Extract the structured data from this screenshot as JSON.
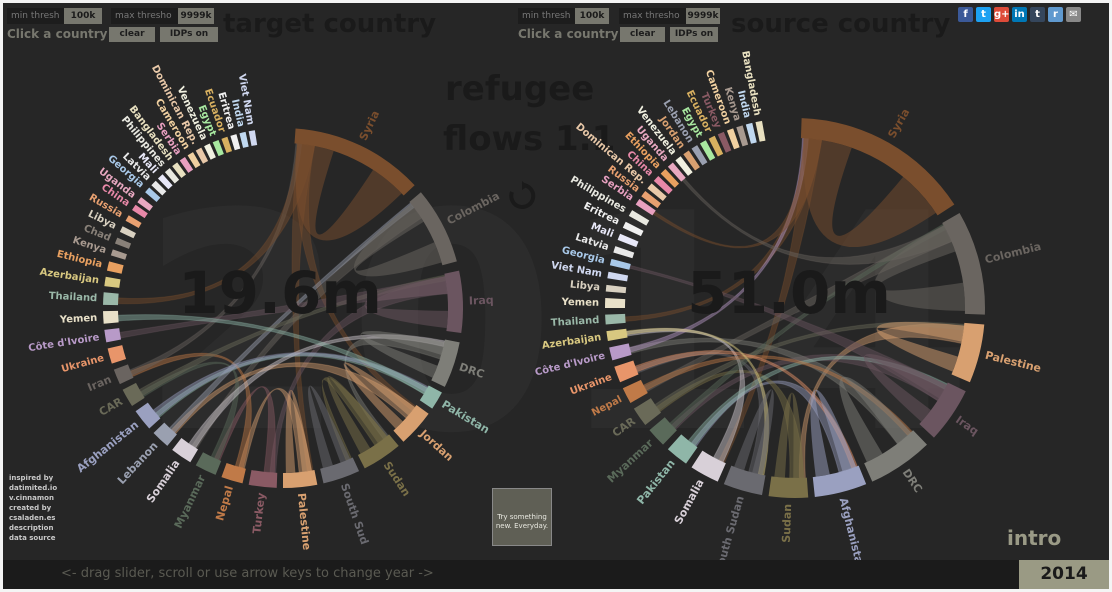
{
  "left": {
    "min_thresh_label": "min thresh",
    "min_thresh_value": "100k",
    "max_thresh_label": "max thresho",
    "max_thresh_value": "9999k",
    "click_hint": "Click a country",
    "clear_label": "clear",
    "idps_label": "IDPs on",
    "title": "target country",
    "total": "19.6m"
  },
  "right": {
    "min_thresh_label": "min thresh",
    "min_thresh_value": "100k",
    "max_thresh_label": "max thresho",
    "max_thresh_value": "9999k",
    "click_hint": "Click a country",
    "clear_label": "clear",
    "idps_label": "IDPs on",
    "title": "source country",
    "total": "51.0m"
  },
  "center": {
    "title_line1": "refugee",
    "title_line2": "flows 1.1",
    "refresh_icon": "refresh-icon"
  },
  "big_background": "2014",
  "credits": [
    "inspired by",
    "datimited.io",
    "v.cinnamon",
    "created by",
    "csaladen.es",
    "description",
    "data source"
  ],
  "try_box": "Try something new. Everyday.",
  "intro": "intro",
  "footer_hint": "<- drag slider, scroll or use arrow keys to change year ->",
  "year": "2014",
  "social": [
    {
      "icon": "facebook-icon",
      "glyph": "f",
      "color": "#3b5998"
    },
    {
      "icon": "twitter-icon",
      "glyph": "t",
      "color": "#1da1f2"
    },
    {
      "icon": "googleplus-icon",
      "glyph": "g+",
      "color": "#dd4b39"
    },
    {
      "icon": "linkedin-icon",
      "glyph": "in",
      "color": "#0077b5"
    },
    {
      "icon": "tumblr-icon",
      "glyph": "t",
      "color": "#35465c"
    },
    {
      "icon": "reddit-icon",
      "glyph": "r",
      "color": "#5f99cf"
    },
    {
      "icon": "email-icon",
      "glyph": "✉",
      "color": "#888888"
    }
  ],
  "chord_left": {
    "segments": [
      {
        "label": "Syria",
        "start": 4,
        "end": 47,
        "color": "#7a4e2d",
        "big": true
      },
      {
        "label": "Colombia",
        "start": 50,
        "end": 75,
        "color": "#6a6560",
        "big": true
      },
      {
        "label": "Iraq",
        "start": 78,
        "end": 98,
        "color": "#6b5560",
        "big": true
      },
      {
        "label": "DRC",
        "start": 101,
        "end": 116,
        "color": "#7e7e78",
        "big": true
      },
      {
        "label": "Pakistan",
        "start": 118,
        "end": 124,
        "color": "#8fb6a8",
        "big": true
      },
      {
        "label": "Jordan",
        "start": 126,
        "end": 138,
        "color": "#d8a070",
        "big": true
      },
      {
        "label": "Sudan",
        "start": 140,
        "end": 153,
        "color": "#7a7048",
        "big": true
      },
      {
        "label": "South Sud",
        "start": 155,
        "end": 167,
        "color": "#6a6a70",
        "big": true
      },
      {
        "label": "Palestine",
        "start": 169,
        "end": 180,
        "color": "#d8a070",
        "big": true
      },
      {
        "label": "Turkey",
        "start": 182,
        "end": 191,
        "color": "#8a5a64",
        "big": true
      },
      {
        "label": "Nepal",
        "start": 193,
        "end": 200,
        "color": "#c07a48",
        "big": true
      },
      {
        "label": "Myanmar",
        "start": 202,
        "end": 209,
        "color": "#5a6a5a",
        "big": true
      },
      {
        "label": "Somalia",
        "start": 211,
        "end": 218,
        "color": "#d8d0d8",
        "big": true
      },
      {
        "label": "Lebanon",
        "start": 220,
        "end": 226,
        "color": "#9aa0b0",
        "big": true
      },
      {
        "label": "Afghanistan",
        "start": 228,
        "end": 235,
        "color": "#9aa0c0",
        "big": true
      },
      {
        "label": "CAR",
        "start": 237,
        "end": 243,
        "color": "#6a6a58",
        "big": true
      },
      {
        "label": "Iran",
        "start": 245,
        "end": 250,
        "color": "#6a6460",
        "big": true
      },
      {
        "label": "Ukraine",
        "start": 252,
        "end": 257,
        "color": "#e8956a",
        "big": false
      },
      {
        "label": "Côte d'Ivoire",
        "start": 259,
        "end": 263,
        "color": "#b89ac8",
        "big": false
      },
      {
        "label": "Yemen",
        "start": 265,
        "end": 269,
        "color": "#e8e0c8",
        "big": false
      },
      {
        "label": "Thailand",
        "start": 271,
        "end": 275,
        "color": "#9ab8a8",
        "big": false
      },
      {
        "label": "Azerbaijan",
        "start": 277,
        "end": 280,
        "color": "#d8c880",
        "big": false
      },
      {
        "label": "Ethiopia",
        "start": 282,
        "end": 285,
        "color": "#e8a060",
        "big": false
      },
      {
        "label": "Kenya",
        "start": 287,
        "end": 289,
        "color": "#a89a90",
        "big": false
      },
      {
        "label": "Chad",
        "start": 291,
        "end": 293,
        "color": "#888078",
        "big": false
      },
      {
        "label": "Libya",
        "start": 295,
        "end": 297,
        "color": "#d8d0c0",
        "big": false
      },
      {
        "label": "Russia",
        "start": 299,
        "end": 301,
        "color": "#e8a070",
        "big": false
      },
      {
        "label": "China",
        "start": 303,
        "end": 305,
        "color": "#e888a8",
        "big": false
      },
      {
        "label": "Uganda",
        "start": 306,
        "end": 308,
        "color": "#e8a8c0",
        "big": false
      },
      {
        "label": "Georgia",
        "start": 310,
        "end": 312,
        "color": "#a8c8e8",
        "big": false
      },
      {
        "label": "Latvia",
        "start": 313,
        "end": 315,
        "color": "#e8e8e8",
        "big": false
      },
      {
        "label": "Mali",
        "start": 316,
        "end": 318,
        "color": "#e8e8f8",
        "big": false
      },
      {
        "label": "Philippines",
        "start": 319,
        "end": 321,
        "color": "#e8e8e0",
        "big": false
      },
      {
        "label": "Bangladesh",
        "start": 322,
        "end": 324,
        "color": "#e8e0c0",
        "big": false
      },
      {
        "label": "Serbia",
        "start": 325,
        "end": 327,
        "color": "#e8a0c0",
        "big": false
      },
      {
        "label": "Cameroon",
        "start": 328,
        "end": 330,
        "color": "#f0d0a0",
        "big": false
      },
      {
        "label": "Dominican Rep.",
        "start": 331,
        "end": 333,
        "color": "#e8c8a8",
        "big": false
      },
      {
        "label": "Venezuela",
        "start": 334,
        "end": 336,
        "color": "#f0f0e0",
        "big": false
      },
      {
        "label": "Egypt",
        "start": 337,
        "end": 339,
        "color": "#a8e8a0",
        "big": false
      },
      {
        "label": "Ecuador",
        "start": 340,
        "end": 342,
        "color": "#d8b060",
        "big": false
      },
      {
        "label": "Eritrea",
        "start": 343,
        "end": 345,
        "color": "#f0f0f0",
        "big": false
      },
      {
        "label": "India",
        "start": 346,
        "end": 348,
        "color": "#c0d8f0",
        "big": false
      },
      {
        "label": "Viet Nam",
        "start": 349,
        "end": 351,
        "color": "#d0d8f0",
        "big": false
      }
    ]
  },
  "chord_right": {
    "segments": [
      {
        "label": "Syria",
        "start": 2,
        "end": 57,
        "color": "#7a4e2d",
        "big": true
      },
      {
        "label": "Colombia",
        "start": 60,
        "end": 92,
        "color": "#6a6560",
        "big": true
      },
      {
        "label": "Palestine",
        "start": 95,
        "end": 113,
        "color": "#d8a070",
        "big": true
      },
      {
        "label": "Iraq",
        "start": 116,
        "end": 133,
        "color": "#6b5560",
        "big": true
      },
      {
        "label": "DRC",
        "start": 136,
        "end": 156,
        "color": "#7e7e78",
        "big": true
      },
      {
        "label": "Afghanistan",
        "start": 158,
        "end": 174,
        "color": "#9aa0c0",
        "big": true
      },
      {
        "label": "Sudan",
        "start": 176,
        "end": 188,
        "color": "#7a7048",
        "big": true
      },
      {
        "label": "South Sudan",
        "start": 190,
        "end": 202,
        "color": "#6a6a70",
        "big": true
      },
      {
        "label": "Somalia",
        "start": 204,
        "end": 213,
        "color": "#d8d0d8",
        "big": true
      },
      {
        "label": "Pakistan",
        "start": 215,
        "end": 222,
        "color": "#8fb6a8",
        "big": true
      },
      {
        "label": "Myanmar",
        "start": 224,
        "end": 230,
        "color": "#5a6a5a",
        "big": true
      },
      {
        "label": "CAR",
        "start": 232,
        "end": 238,
        "color": "#6a6a58",
        "big": true
      },
      {
        "label": "Nepal",
        "start": 240,
        "end": 245,
        "color": "#c07a48",
        "big": false
      },
      {
        "label": "Ukraine",
        "start": 247,
        "end": 252,
        "color": "#e8956a",
        "big": false
      },
      {
        "label": "Côte d'Ivoire",
        "start": 254,
        "end": 258,
        "color": "#b89ac8",
        "big": false
      },
      {
        "label": "Azerbaijan",
        "start": 260,
        "end": 263,
        "color": "#d8c880",
        "big": false
      },
      {
        "label": "Thailand",
        "start": 265,
        "end": 268,
        "color": "#9ab8a8",
        "big": false
      },
      {
        "label": "Yemen",
        "start": 270,
        "end": 273,
        "color": "#e8e0c8",
        "big": false
      },
      {
        "label": "Libya",
        "start": 275,
        "end": 277,
        "color": "#d8d0c0",
        "big": false
      },
      {
        "label": "Viet Nam",
        "start": 279,
        "end": 281,
        "color": "#d0d8f0",
        "big": false
      },
      {
        "label": "Georgia",
        "start": 283,
        "end": 285,
        "color": "#a8c8e8",
        "big": false
      },
      {
        "label": "Latvia",
        "start": 287,
        "end": 289,
        "color": "#e8e8e8",
        "big": false
      },
      {
        "label": "Mali",
        "start": 291,
        "end": 293,
        "color": "#e8e8f8",
        "big": false
      },
      {
        "label": "Eritrea",
        "start": 295,
        "end": 297,
        "color": "#f0f0f0",
        "big": false
      },
      {
        "label": "Philippines",
        "start": 299,
        "end": 301,
        "color": "#e8e8e0",
        "big": false
      },
      {
        "label": "Serbia",
        "start": 303,
        "end": 305,
        "color": "#e8a0c0",
        "big": false
      },
      {
        "label": "Russia",
        "start": 306,
        "end": 308,
        "color": "#e8a070",
        "big": false
      },
      {
        "label": "Dominican Rep.",
        "start": 309,
        "end": 311,
        "color": "#e8c8a8",
        "big": false
      },
      {
        "label": "China",
        "start": 312,
        "end": 314,
        "color": "#e888a8",
        "big": false
      },
      {
        "label": "Ethiopia",
        "start": 315,
        "end": 317,
        "color": "#e8a060",
        "big": false
      },
      {
        "label": "Uganda",
        "start": 318,
        "end": 320,
        "color": "#e8a8c0",
        "big": false
      },
      {
        "label": "Venezuela",
        "start": 321,
        "end": 323,
        "color": "#f0f0e0",
        "big": false
      },
      {
        "label": "Jordan",
        "start": 324,
        "end": 326,
        "color": "#d8a070",
        "big": false
      },
      {
        "label": "Lebanon",
        "start": 327,
        "end": 329,
        "color": "#9aa0b0",
        "big": false
      },
      {
        "label": "Egypt",
        "start": 330,
        "end": 332,
        "color": "#a8e8a0",
        "big": false
      },
      {
        "label": "Ecuador",
        "start": 333,
        "end": 335,
        "color": "#d8b060",
        "big": false
      },
      {
        "label": "Turkey",
        "start": 336,
        "end": 338,
        "color": "#8a5a64",
        "big": false
      },
      {
        "label": "Cameroon",
        "start": 339,
        "end": 341,
        "color": "#f0d0a0",
        "big": false
      },
      {
        "label": "Kenya",
        "start": 342,
        "end": 344,
        "color": "#a89a90",
        "big": false
      },
      {
        "label": "India",
        "start": 345,
        "end": 347,
        "color": "#c0d8f0",
        "big": false
      },
      {
        "label": "Bangladesh",
        "start": 348,
        "end": 350,
        "color": "#e8e0c0",
        "big": false
      }
    ]
  }
}
